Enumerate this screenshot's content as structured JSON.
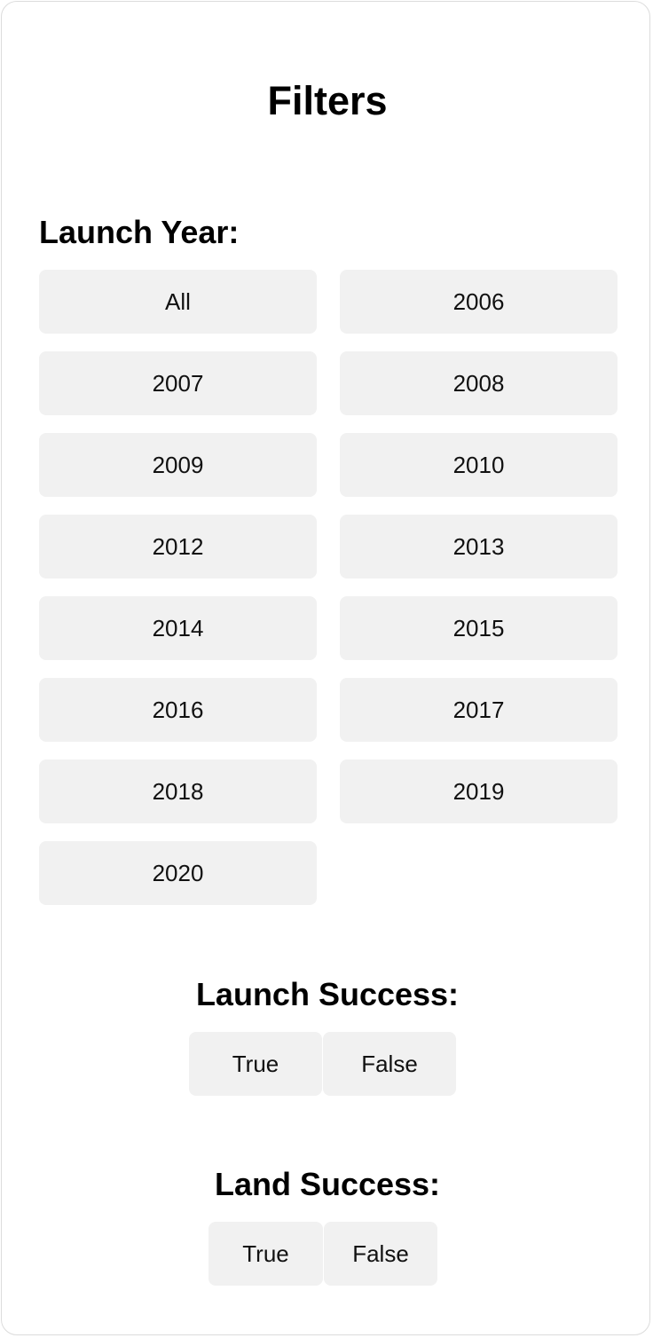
{
  "title": "Filters",
  "launch_year": {
    "heading": "Launch Year:",
    "options": [
      "All",
      "2006",
      "2007",
      "2008",
      "2009",
      "2010",
      "2012",
      "2013",
      "2014",
      "2015",
      "2016",
      "2017",
      "2018",
      "2019",
      "2020"
    ]
  },
  "launch_success": {
    "heading": "Launch Success:",
    "true_label": "True",
    "false_label": "False"
  },
  "land_success": {
    "heading": "Land Success:",
    "true_label": "True",
    "false_label": "False"
  },
  "colors": {
    "button_bg": "#f1f1f1",
    "card_border": "#dcdcdc",
    "text": "#000000"
  }
}
